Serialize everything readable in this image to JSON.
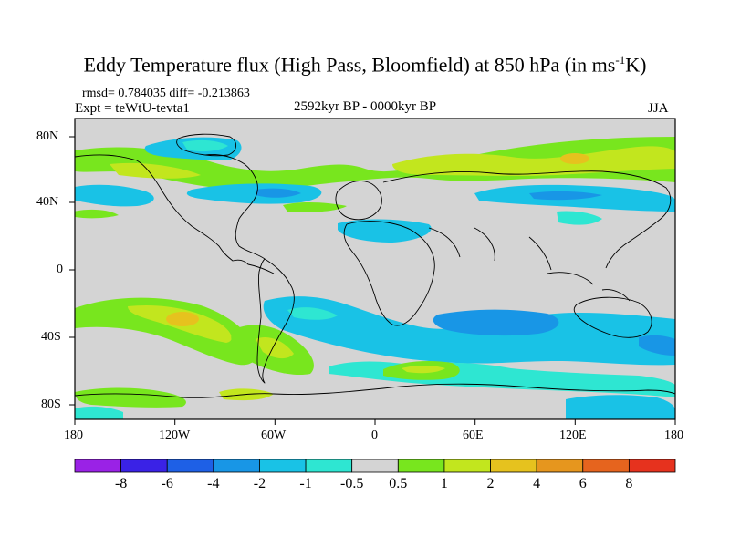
{
  "title": {
    "main": "Eddy Temperature flux (High Pass, Bloomfield) at 850 hPa (in ms",
    "sup": "-1",
    "end": "K)"
  },
  "stats": "rmsd= 0.784035 diff= -0.213863",
  "experiment": "Expt = teWtU-tevta1",
  "period": "2592kyr BP - 0000kyr BP",
  "season": "JJA",
  "axes": {
    "lat_ticks": [
      "80N",
      "40N",
      "0",
      "40S",
      "80S"
    ],
    "lon_ticks": [
      "180",
      "120W",
      "60W",
      "0",
      "60E",
      "120E",
      "180"
    ]
  },
  "colorbar": {
    "colors": [
      "#9a22e6",
      "#3a22e6",
      "#1e60e6",
      "#1896e6",
      "#19c2e6",
      "#2ee6d2",
      "#d4d4d4",
      "#78e61e",
      "#c2e61e",
      "#e6c21e",
      "#e6961e",
      "#e6641e",
      "#e6321e"
    ],
    "labels": [
      "-8",
      "-6",
      "-4",
      "-2",
      "-1",
      "-0.5",
      "0.5",
      "1",
      "2",
      "4",
      "6",
      "8"
    ]
  }
}
